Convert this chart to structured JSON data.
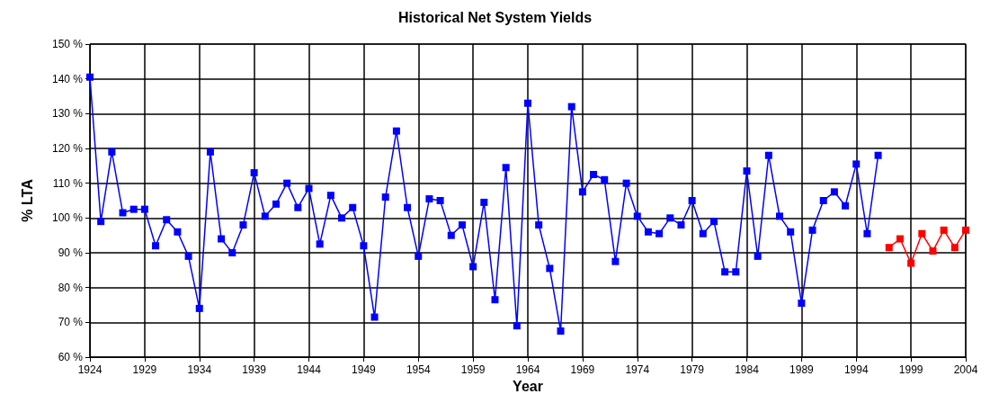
{
  "chart_data": {
    "type": "line",
    "title": "Historical Net System Yields",
    "xlabel": "Year",
    "ylabel": "% LTA",
    "series": [
      {
        "color": "#0000ff",
        "x": [
          1924,
          1925,
          1926,
          1927,
          1928,
          1929,
          1930,
          1931,
          1932,
          1933,
          1934,
          1935,
          1936,
          1937,
          1938,
          1939,
          1940,
          1941,
          1942,
          1943,
          1944,
          1945,
          1946,
          1947,
          1948,
          1949,
          1950,
          1951,
          1952,
          1953,
          1954,
          1955,
          1956,
          1957,
          1958,
          1959,
          1960,
          1961,
          1962,
          1963,
          1964,
          1965,
          1966,
          1967,
          1968,
          1969,
          1970,
          1971,
          1972,
          1973,
          1974,
          1975,
          1976,
          1977,
          1978,
          1979,
          1980,
          1981,
          1982,
          1983,
          1984,
          1985,
          1986,
          1987,
          1988,
          1989,
          1990,
          1991,
          1992,
          1993,
          1994,
          1995,
          1996
        ],
        "values": [
          140.5,
          99,
          119,
          101.5,
          102.5,
          102.5,
          92,
          99.5,
          96,
          89,
          74,
          119,
          94,
          90,
          98,
          113,
          100.5,
          104,
          110,
          103,
          108.5,
          92.5,
          106.5,
          100,
          103,
          92,
          71.5,
          106,
          125,
          103,
          89,
          105.5,
          105,
          95,
          98,
          86,
          104.5,
          76.5,
          114.5,
          69,
          133,
          98,
          85.5,
          67.5,
          132,
          107.5,
          112.5,
          111,
          87.5,
          110,
          100.5,
          96,
          95.5,
          100,
          98,
          105,
          95.5,
          99,
          84.5,
          84.5,
          113.5,
          89,
          118,
          100.5,
          96,
          75.5,
          96.5,
          105,
          107.5,
          103.5,
          115.5,
          95.5,
          118
        ]
      },
      {
        "color": "#ff0000",
        "x": [
          1997,
          1998,
          1999,
          2000,
          2001,
          2002,
          2003,
          2004
        ],
        "values": [
          91.5,
          94,
          87,
          95.5,
          90.5,
          96.5,
          91.5,
          96.5
        ]
      }
    ],
    "xlim": [
      1924,
      2004
    ],
    "xticks": [
      1924,
      1929,
      1934,
      1939,
      1944,
      1949,
      1954,
      1959,
      1964,
      1969,
      1974,
      1979,
      1984,
      1989,
      1994,
      1999,
      2004
    ],
    "ylim": [
      60,
      150
    ],
    "yticks": [
      {
        "value": 60,
        "label": "60 %"
      },
      {
        "value": 70,
        "label": "70 %"
      },
      {
        "value": 80,
        "label": "80 %"
      },
      {
        "value": 90,
        "label": "90 %"
      },
      {
        "value": 100,
        "label": "100 %"
      },
      {
        "value": 110,
        "label": "110 %"
      },
      {
        "value": 120,
        "label": "120 %"
      },
      {
        "value": 130,
        "label": "130 %"
      },
      {
        "value": 140,
        "label": "140 %"
      },
      {
        "value": 150,
        "label": "150 %"
      }
    ],
    "grid": true,
    "marker": "square",
    "line_style": "solid"
  }
}
